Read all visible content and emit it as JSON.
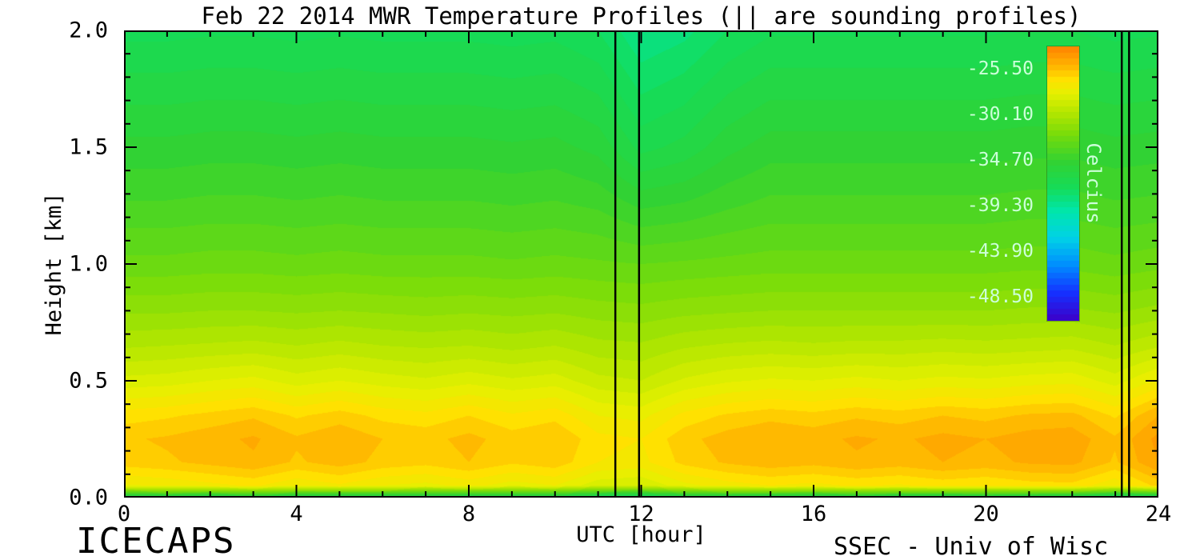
{
  "chart": {
    "title": "Feb 22 2014 MWR Temperature Profiles (|| are sounding profiles)",
    "footer_left": "ICECAPS",
    "footer_right": "SSEC - Univ of Wisc",
    "background": "#ffffff",
    "frame_color": "#000000"
  },
  "chart_data": {
    "type": "heatmap",
    "title": "Feb 22 2014 MWR Temperature Profiles (|| are sounding profiles)",
    "xlabel": "UTC [hour]",
    "ylabel": "Height [km]",
    "xlim": [
      0,
      24
    ],
    "ylim": [
      0,
      2
    ],
    "x_ticks": [
      0,
      4,
      8,
      12,
      16,
      20,
      24
    ],
    "x_minor_step": 1,
    "y_ticks": [
      "0.0",
      "0.5",
      "1.0",
      "1.5",
      "2.0"
    ],
    "y_minor_step": 0.1,
    "grid": false,
    "sounding_times": [
      11.4,
      11.95,
      23.15,
      23.32
    ],
    "times": [
      0,
      1,
      2,
      3,
      4,
      5,
      6,
      7,
      8,
      9,
      10,
      11,
      12,
      13,
      14,
      15,
      16,
      17,
      18,
      19,
      20,
      21,
      22,
      23,
      24
    ],
    "heights": [
      0,
      0.05,
      0.15,
      0.25,
      0.35,
      0.5,
      0.65,
      0.8,
      1.0,
      1.25,
      1.5,
      1.75,
      2.0
    ],
    "temperature_c": [
      [
        -36.8,
        -36.5,
        -36.9,
        -36.4,
        -36.8,
        -37.0,
        -36.6,
        -36.9,
        -37.2,
        -36.7,
        -36.9,
        -37.8,
        -38.2,
        -37.0,
        -36.6,
        -36.8,
        -37.0,
        -36.5,
        -36.8,
        -36.9,
        -36.6,
        -36.8,
        -37.0,
        -38.0,
        -37.5
      ],
      [
        -27.5,
        -27.3,
        -27.0,
        -26.7,
        -27.3,
        -26.9,
        -27.4,
        -27.6,
        -27.2,
        -27.7,
        -27.4,
        -28.4,
        -28.6,
        -27.6,
        -27.1,
        -26.8,
        -27.0,
        -26.7,
        -26.9,
        -26.6,
        -26.8,
        -26.5,
        -26.4,
        -27.3,
        -26.0
      ],
      [
        -25.9,
        -25.7,
        -25.4,
        -25.1,
        -25.7,
        -25.3,
        -25.8,
        -26.0,
        -25.6,
        -26.1,
        -25.8,
        -26.8,
        -27.0,
        -26.0,
        -25.5,
        -25.2,
        -25.4,
        -25.1,
        -25.3,
        -25.0,
        -25.2,
        -24.9,
        -24.8,
        -25.7,
        -24.4
      ],
      [
        -25.7,
        -25.5,
        -25.2,
        -24.9,
        -25.5,
        -25.1,
        -25.6,
        -25.8,
        -25.4,
        -25.9,
        -25.6,
        -26.6,
        -26.8,
        -25.8,
        -25.3,
        -25.0,
        -25.2,
        -24.9,
        -25.1,
        -24.8,
        -25.0,
        -24.7,
        -24.6,
        -25.5,
        -24.2
      ],
      [
        -26.5,
        -26.3,
        -26.0,
        -25.7,
        -26.3,
        -25.9,
        -26.4,
        -26.6,
        -26.2,
        -26.7,
        -26.4,
        -27.4,
        -27.6,
        -26.6,
        -26.1,
        -25.8,
        -26.0,
        -25.7,
        -25.9,
        -25.6,
        -25.8,
        -25.5,
        -25.4,
        -26.3,
        -25.0
      ],
      [
        -28.4,
        -28.3,
        -28.0,
        -27.8,
        -28.3,
        -28.0,
        -28.3,
        -28.5,
        -28.2,
        -28.5,
        -28.3,
        -29.0,
        -29.2,
        -28.5,
        -28.1,
        -27.9,
        -28.0,
        -27.8,
        -28.0,
        -27.8,
        -27.9,
        -27.7,
        -27.6,
        -28.3,
        -27.3
      ],
      [
        -29.9,
        -29.8,
        -29.7,
        -29.6,
        -29.8,
        -29.6,
        -29.8,
        -29.9,
        -29.8,
        -30.0,
        -29.8,
        -30.2,
        -30.3,
        -29.9,
        -29.7,
        -29.6,
        -29.7,
        -29.6,
        -29.6,
        -29.5,
        -29.6,
        -29.5,
        -29.4,
        -29.8,
        -29.3
      ],
      [
        -31.1,
        -31.1,
        -31.0,
        -31.0,
        -31.1,
        -31.0,
        -31.1,
        -31.2,
        -31.1,
        -31.2,
        -31.1,
        -31.3,
        -31.4,
        -31.2,
        -31.1,
        -31.0,
        -31.0,
        -31.0,
        -31.0,
        -31.0,
        -31.0,
        -30.9,
        -30.9,
        -31.1,
        -30.8
      ],
      [
        -32.6,
        -32.6,
        -32.5,
        -32.5,
        -32.6,
        -32.5,
        -32.6,
        -32.6,
        -32.6,
        -32.7,
        -32.6,
        -32.7,
        -32.8,
        -32.7,
        -32.6,
        -32.5,
        -32.5,
        -32.5,
        -32.5,
        -32.5,
        -32.5,
        -32.4,
        -32.4,
        -32.6,
        -32.4
      ],
      [
        -33.9,
        -33.9,
        -33.8,
        -33.8,
        -33.9,
        -33.8,
        -33.9,
        -33.9,
        -33.9,
        -34.0,
        -33.9,
        -34.1,
        -34.7,
        -34.5,
        -34.1,
        -33.8,
        -33.8,
        -33.8,
        -33.8,
        -33.8,
        -33.8,
        -33.7,
        -33.7,
        -33.9,
        -33.8
      ],
      [
        -35.0,
        -35.0,
        -34.9,
        -34.9,
        -35.0,
        -34.9,
        -35.0,
        -35.0,
        -35.0,
        -35.1,
        -35.0,
        -35.4,
        -36.6,
        -36.2,
        -35.4,
        -34.9,
        -34.9,
        -34.9,
        -34.9,
        -34.9,
        -34.9,
        -34.8,
        -34.8,
        -35.0,
        -34.9
      ],
      [
        -36.1,
        -36.1,
        -36.0,
        -36.0,
        -36.1,
        -36.0,
        -36.1,
        -36.1,
        -36.1,
        -36.2,
        -36.1,
        -36.5,
        -37.7,
        -37.3,
        -36.5,
        -36.0,
        -36.0,
        -36.0,
        -36.0,
        -36.0,
        -36.0,
        -35.9,
        -35.9,
        -36.1,
        -36.0
      ],
      [
        -37.2,
        -37.2,
        -37.1,
        -37.1,
        -37.2,
        -37.1,
        -37.2,
        -37.2,
        -37.2,
        -37.3,
        -37.2,
        -37.6,
        -38.8,
        -38.4,
        -37.6,
        -37.1,
        -37.1,
        -37.1,
        -37.1,
        -37.1,
        -37.1,
        -37.0,
        -37.0,
        -37.2,
        -37.1
      ]
    ],
    "levels": 46,
    "colorbar": {
      "title": "Celcius",
      "tick_labels": [
        "-25.50",
        "-30.10",
        "-34.70",
        "-39.30",
        "-43.90",
        "-48.50"
      ],
      "tick_values": [
        -25.5,
        -30.1,
        -34.7,
        -39.3,
        -43.9,
        -48.5
      ],
      "vmin": -50.8,
      "vmax": -23.2,
      "label_color": "#ccffd9",
      "legend_position": "inside-right"
    },
    "colormap": [
      {
        "t": 0.0,
        "color": "#3c00c8"
      },
      {
        "t": 0.1,
        "color": "#1530ff"
      },
      {
        "t": 0.2,
        "color": "#008cff"
      },
      {
        "t": 0.3,
        "color": "#00d2e6"
      },
      {
        "t": 0.4,
        "color": "#00e6aa"
      },
      {
        "t": 0.48,
        "color": "#14dc5a"
      },
      {
        "t": 0.58,
        "color": "#32d232"
      },
      {
        "t": 0.68,
        "color": "#78dc0a"
      },
      {
        "t": 0.76,
        "color": "#b4e600"
      },
      {
        "t": 0.83,
        "color": "#e6f000"
      },
      {
        "t": 0.88,
        "color": "#ffe100"
      },
      {
        "t": 0.93,
        "color": "#ffb400"
      },
      {
        "t": 1.0,
        "color": "#ff8200"
      }
    ]
  }
}
